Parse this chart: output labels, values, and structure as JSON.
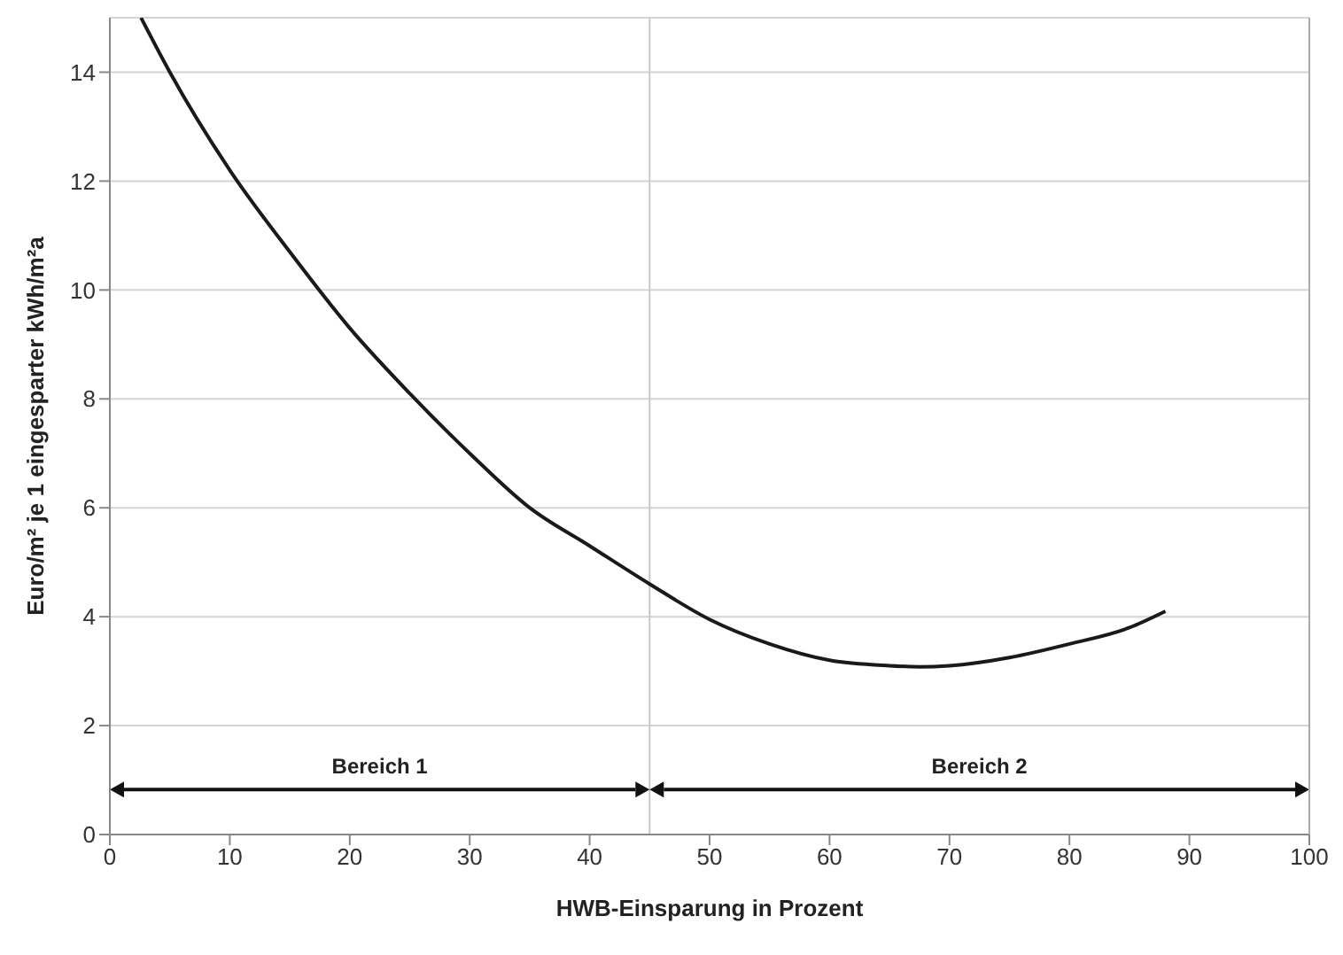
{
  "chart_data": {
    "type": "line",
    "xlabel": "HWB-Einsparung in Prozent",
    "ylabel": "Euro/m² je 1 eingesparter kWh/m²a",
    "x": [
      2.6,
      5,
      10,
      15,
      20,
      25,
      30,
      35,
      40,
      45,
      50,
      55,
      60,
      65,
      67.5,
      70,
      75,
      80,
      85,
      88
    ],
    "series": [
      {
        "color": "#1a1a1a",
        "values": [
          15,
          14,
          12.2,
          10.7,
          9.3,
          8.1,
          7,
          6,
          5.3,
          4.6,
          3.95,
          3.5,
          3.2,
          3.1,
          3.08,
          3.1,
          3.25,
          3.5,
          3.8,
          4.1
        ]
      }
    ],
    "xlim": [
      0,
      100
    ],
    "xticks": [
      0,
      10,
      20,
      30,
      40,
      50,
      60,
      70,
      80,
      90,
      100
    ],
    "ylim": [
      0,
      15
    ],
    "yticks": [
      0,
      2,
      4,
      6,
      8,
      10,
      12,
      14
    ],
    "grid": "y",
    "marker": "none",
    "line_style": "solid",
    "ref_lines": [
      {
        "axis": "x",
        "value": 45,
        "color": "#c8c8c8"
      }
    ],
    "annotations": [
      "Bereich 1",
      "Bereich 2"
    ]
  }
}
